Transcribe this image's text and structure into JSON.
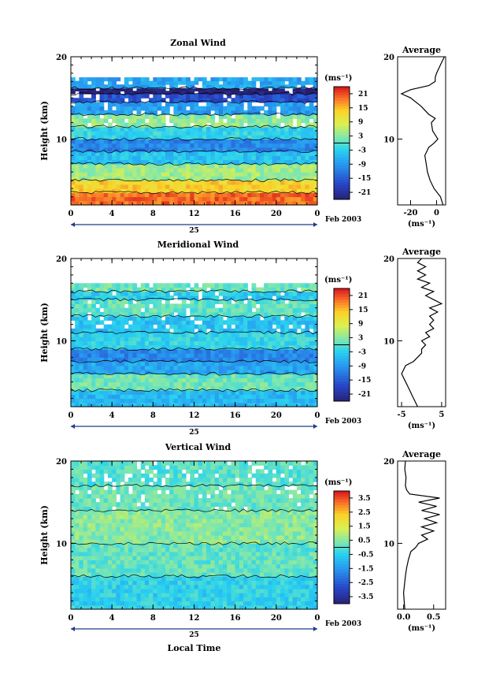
{
  "chart_data": [
    {
      "type": "heatmap",
      "title": "Zonal Wind",
      "ylabel": "Height (km)",
      "ylim": [
        2,
        20
      ],
      "xlim": [
        0,
        24
      ],
      "x_ticks": [
        "0",
        "4",
        "8",
        "12",
        "16",
        "20",
        "0"
      ],
      "y_ticks": [
        "20",
        "10"
      ],
      "day_label": "25",
      "date_label": "Feb 2003",
      "colorbar": {
        "unit": "(ms⁻¹)",
        "ticks": [
          "21",
          "15",
          "9",
          "3",
          "-3",
          "-9",
          "-15",
          "-21"
        ],
        "range": [
          -24,
          24
        ]
      },
      "bands": [
        {
          "y0": 2,
          "y1": 3.5,
          "value": 20
        },
        {
          "y0": 3.5,
          "y1": 5,
          "value": 14
        },
        {
          "y0": 5,
          "y1": 7,
          "value": 5
        },
        {
          "y0": 7,
          "y1": 8.5,
          "value": -4
        },
        {
          "y0": 8.5,
          "y1": 10,
          "value": -10
        },
        {
          "y0": 10,
          "y1": 11.5,
          "value": -2
        },
        {
          "y0": 11.5,
          "y1": 13,
          "value": 4
        },
        {
          "y0": 13,
          "y1": 14.5,
          "value": -8
        },
        {
          "y0": 14.5,
          "y1": 15.5,
          "value": -16
        },
        {
          "y0": 15.5,
          "y1": 16.2,
          "value": -24
        },
        {
          "y0": 16.2,
          "y1": 17.5,
          "value": -7
        }
      ],
      "average": {
        "title": "Average",
        "xlabel": "(ms⁻¹)",
        "x_ticks": [
          "-20",
          "0"
        ],
        "xlim": [
          -30,
          7
        ],
        "y_ticks": [
          "20",
          "10"
        ],
        "profile": [
          [
            2,
            5
          ],
          [
            3,
            3
          ],
          [
            4,
            -2
          ],
          [
            5,
            -5
          ],
          [
            6,
            -7
          ],
          [
            7,
            -8
          ],
          [
            8,
            -9
          ],
          [
            9,
            -6
          ],
          [
            9.5,
            -2
          ],
          [
            10,
            1
          ],
          [
            10.5,
            -1
          ],
          [
            11,
            -3
          ],
          [
            12,
            -4
          ],
          [
            12.5,
            -1
          ],
          [
            13,
            -6
          ],
          [
            14,
            -12
          ],
          [
            15,
            -20
          ],
          [
            15.5,
            -27
          ],
          [
            16,
            -20
          ],
          [
            16.5,
            -6
          ],
          [
            17,
            -1
          ],
          [
            17.5,
            -1
          ],
          [
            18,
            0
          ],
          [
            19,
            3
          ],
          [
            20,
            6
          ]
        ]
      }
    },
    {
      "type": "heatmap",
      "title": "Meridional Wind",
      "ylabel": "Height (km)",
      "ylim": [
        2,
        20
      ],
      "xlim": [
        0,
        24
      ],
      "x_ticks": [
        "0",
        "4",
        "8",
        "12",
        "16",
        "20",
        "0"
      ],
      "y_ticks": [
        "20",
        "10"
      ],
      "day_label": "25",
      "date_label": "Feb 2003",
      "colorbar": {
        "unit": "(ms⁻¹)",
        "ticks": [
          "21",
          "15",
          "9",
          "3",
          "-3",
          "-9",
          "-15",
          "-21"
        ],
        "range": [
          -24,
          24
        ]
      },
      "bands": [
        {
          "y0": 2,
          "y1": 4,
          "value": -5
        },
        {
          "y0": 4,
          "y1": 6,
          "value": 2
        },
        {
          "y0": 6,
          "y1": 7.5,
          "value": -7
        },
        {
          "y0": 7.5,
          "y1": 9,
          "value": -10
        },
        {
          "y0": 9,
          "y1": 11,
          "value": -2
        },
        {
          "y0": 11,
          "y1": 13,
          "value": -4
        },
        {
          "y0": 13,
          "y1": 15,
          "value": 1
        },
        {
          "y0": 15,
          "y1": 16,
          "value": -3
        },
        {
          "y0": 16,
          "y1": 17,
          "value": 2
        }
      ],
      "average": {
        "title": "Average",
        "xlabel": "(ms⁻¹)",
        "x_ticks": [
          "-5",
          "5"
        ],
        "xlim": [
          -6,
          6
        ],
        "y_ticks": [
          "20",
          "10"
        ],
        "profile": [
          [
            2,
            -1
          ],
          [
            3,
            -2
          ],
          [
            4,
            -3
          ],
          [
            5,
            -4
          ],
          [
            6,
            -5
          ],
          [
            7,
            -4
          ],
          [
            7.5,
            -2
          ],
          [
            8,
            -1
          ],
          [
            8.5,
            0
          ],
          [
            9,
            0
          ],
          [
            9.5,
            1
          ],
          [
            10,
            0
          ],
          [
            10.5,
            2
          ],
          [
            11,
            1
          ],
          [
            11.5,
            3
          ],
          [
            12,
            2
          ],
          [
            12.5,
            3
          ],
          [
            13,
            2
          ],
          [
            13.5,
            4
          ],
          [
            14,
            2
          ],
          [
            14.5,
            5
          ],
          [
            15,
            3
          ],
          [
            15.5,
            1
          ],
          [
            16,
            3
          ],
          [
            16.5,
            0
          ],
          [
            17,
            2
          ],
          [
            17.5,
            -1
          ],
          [
            18,
            1
          ],
          [
            18.5,
            -1
          ],
          [
            19,
            1
          ],
          [
            19.5,
            -1
          ],
          [
            20,
            0
          ]
        ]
      }
    },
    {
      "type": "heatmap",
      "title": "Vertical Wind",
      "ylabel": "Height (km)",
      "xlabel": "Local Time",
      "ylim": [
        2,
        20
      ],
      "xlim": [
        0,
        24
      ],
      "x_ticks": [
        "0",
        "4",
        "8",
        "12",
        "16",
        "20",
        "0"
      ],
      "y_ticks": [
        "20",
        "10"
      ],
      "day_label": "25",
      "date_label": "Feb 2003",
      "colorbar": {
        "unit": "(ms⁻¹)",
        "ticks": [
          "3.5",
          "2.5",
          "1.5",
          "0.5",
          "-0.5",
          "-1.5",
          "-2.5",
          "-3.5"
        ],
        "range": [
          -4,
          4
        ]
      },
      "bands": [
        {
          "y0": 2,
          "y1": 6,
          "value": -0.4
        },
        {
          "y0": 6,
          "y1": 10,
          "value": 0.2
        },
        {
          "y0": 10,
          "y1": 14,
          "value": 0.6
        },
        {
          "y0": 14,
          "y1": 17,
          "value": 0.3
        },
        {
          "y0": 17,
          "y1": 20,
          "value": 0.1
        }
      ],
      "average": {
        "title": "Average",
        "xlabel": "(ms⁻¹)",
        "x_ticks": [
          "0.0",
          "0.5"
        ],
        "xlim": [
          -0.1,
          0.7
        ],
        "y_ticks": [
          "20",
          "10"
        ],
        "profile": [
          [
            2,
            0.02
          ],
          [
            4,
            0.0
          ],
          [
            6,
            0.03
          ],
          [
            7,
            0.05
          ],
          [
            8,
            0.08
          ],
          [
            9,
            0.12
          ],
          [
            9.5,
            0.2
          ],
          [
            10,
            0.25
          ],
          [
            10.5,
            0.4
          ],
          [
            11,
            0.3
          ],
          [
            11.5,
            0.5
          ],
          [
            12,
            0.3
          ],
          [
            12.5,
            0.55
          ],
          [
            13,
            0.35
          ],
          [
            13.5,
            0.6
          ],
          [
            14,
            0.3
          ],
          [
            14.5,
            0.55
          ],
          [
            15,
            0.25
          ],
          [
            15.5,
            0.6
          ],
          [
            16,
            0.1
          ],
          [
            16.5,
            0.05
          ],
          [
            17,
            0.03
          ],
          [
            18,
            0.04
          ],
          [
            19,
            0.02
          ],
          [
            20,
            0.03
          ]
        ]
      }
    }
  ]
}
